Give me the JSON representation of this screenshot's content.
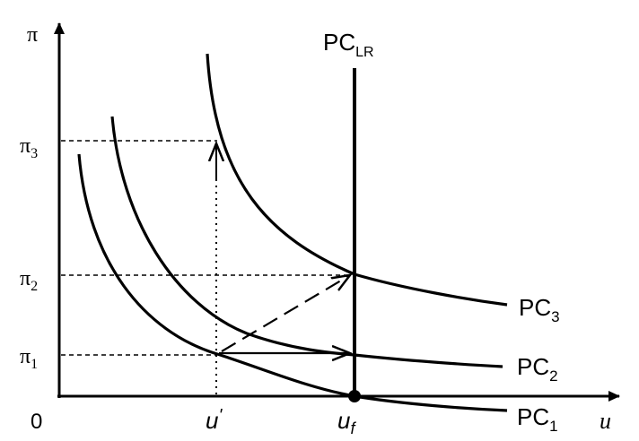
{
  "axes": {
    "y_label": "π",
    "x_label": "u",
    "origin_label": "0"
  },
  "y_ticks": [
    {
      "base": "π",
      "sub": "3"
    },
    {
      "base": "π",
      "sub": "2"
    },
    {
      "base": "π",
      "sub": "1"
    }
  ],
  "x_ticks": [
    {
      "base": "u",
      "sup": "'"
    },
    {
      "base": "u",
      "sub": "f"
    }
  ],
  "long_run_curve": {
    "base": "PC",
    "sub": "LR"
  },
  "curves": [
    {
      "base": "PC",
      "sub": "3"
    },
    {
      "base": "PC",
      "sub": "2"
    },
    {
      "base": "PC",
      "sub": "1"
    }
  ],
  "colors": {
    "ink": "#000000",
    "background": "#ffffff"
  }
}
